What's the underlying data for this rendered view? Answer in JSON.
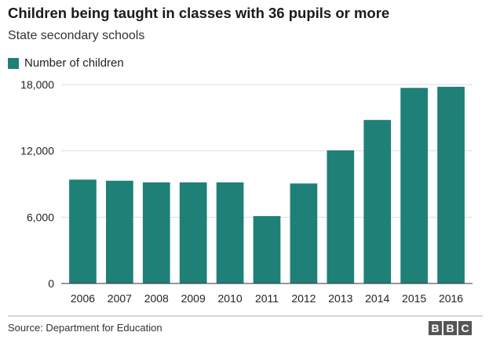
{
  "title": "Children being taught in classes with 36 pupils or more",
  "subtitle": "State secondary schools",
  "source": "Source: Department for Education",
  "logo": [
    "B",
    "B",
    "C"
  ],
  "colors": {
    "bar": "#1f8078",
    "grid": "#dddddd",
    "axis": "#333333",
    "text": "#222222"
  },
  "chart_data": {
    "type": "bar",
    "title": "Children being taught in classes with 36 pupils or more",
    "subtitle": "State secondary schools",
    "xlabel": "",
    "ylabel": "",
    "categories": [
      "2006",
      "2007",
      "2008",
      "2009",
      "2010",
      "2011",
      "2012",
      "2013",
      "2014",
      "2015",
      "2016"
    ],
    "series": [
      {
        "name": "Number of children",
        "values": [
          9400,
          9300,
          9150,
          9150,
          9150,
          6100,
          9050,
          12050,
          14800,
          17700,
          17800
        ]
      }
    ],
    "ylim": [
      0,
      18000
    ],
    "yticks": [
      0,
      6000,
      12000,
      18000
    ],
    "ytick_labels": [
      "0",
      "6,000",
      "12,000",
      "18,000"
    ],
    "grid": true,
    "legend_position": "top-left"
  }
}
